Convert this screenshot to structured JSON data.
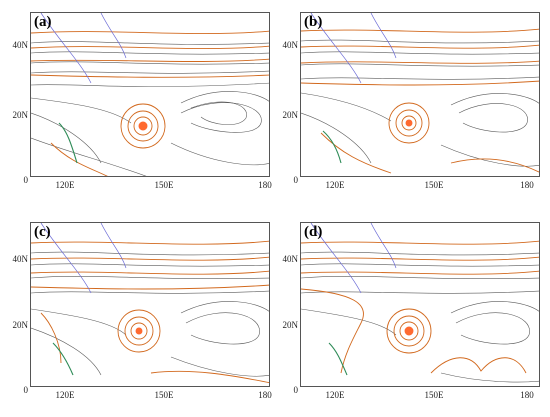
{
  "panels": [
    {
      "label": "(a)"
    },
    {
      "label": "(b)"
    },
    {
      "label": "(c)"
    },
    {
      "label": "(d)"
    }
  ],
  "axes": {
    "y_ticks": [
      "40N",
      "20N",
      "0"
    ],
    "x_ticks": [
      "120E",
      "150E",
      "180"
    ]
  },
  "colors": {
    "streamline": "#5a5a5a",
    "wind_contour": "#d2691e",
    "vortex_core": "#ff6a30",
    "coast": "#6b6bd6",
    "land": "#2e8b57"
  }
}
